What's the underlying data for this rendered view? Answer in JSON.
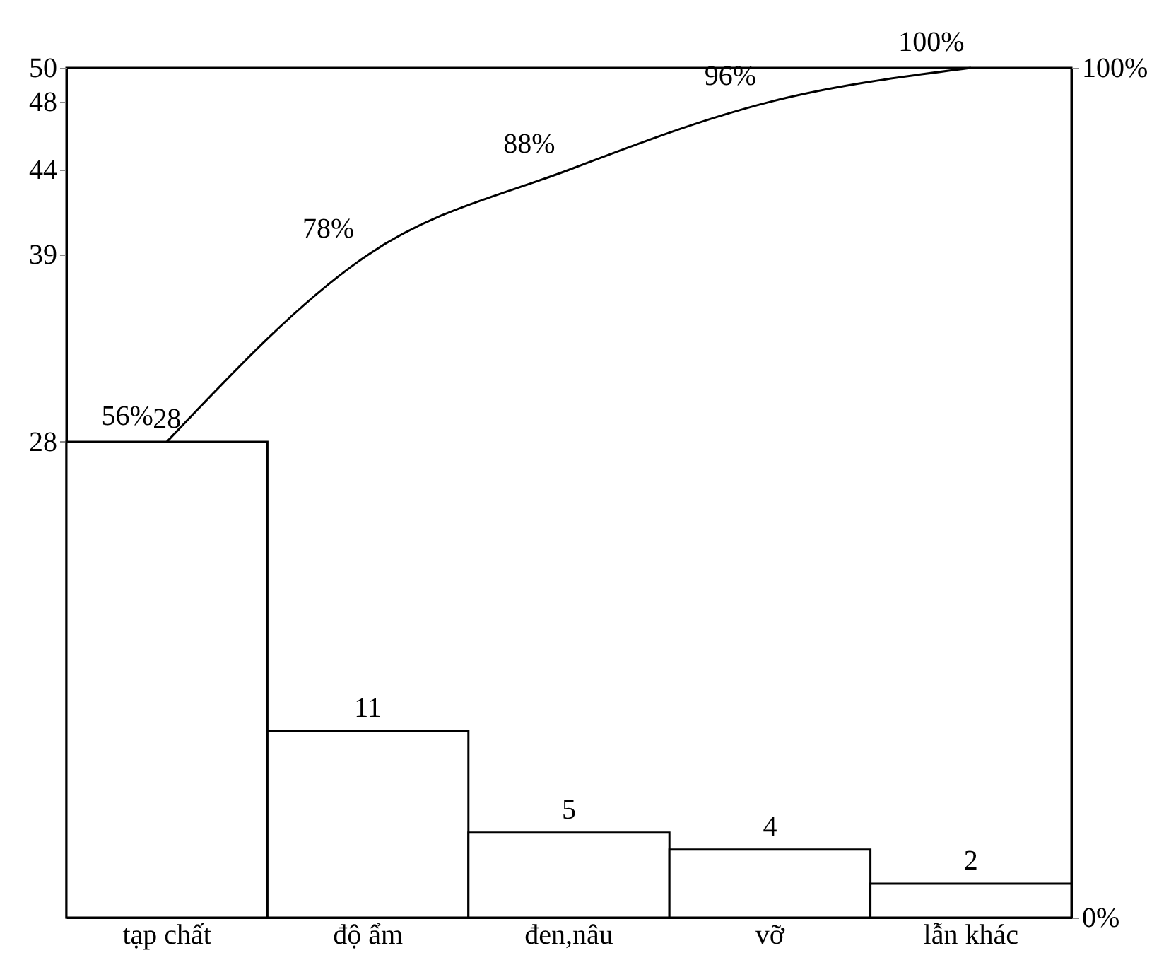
{
  "chart_data": {
    "type": "bar",
    "categories": [
      "tạp chất",
      "độ ẩm",
      "đen,nâu",
      "vỡ",
      "lẫn khác"
    ],
    "series": [
      {
        "color": "#ffffff",
        "values": [
          28,
          11,
          5,
          4,
          2
        ]
      },
      {
        "type": "line",
        "axis": "y2",
        "color": "#000000",
        "values": [
          56,
          78,
          88,
          96,
          100
        ],
        "value_labels": [
          "56%",
          "78%",
          "88%",
          "96%",
          "100%"
        ]
      }
    ],
    "data_labels": true,
    "ylim": [
      0,
      50
    ],
    "yticks": [
      28,
      39,
      44,
      48,
      50
    ],
    "y2lim": [
      0,
      100
    ],
    "y2ticks": [
      {
        "value": 0,
        "label": "0%"
      },
      {
        "value": 100,
        "label": "100%"
      }
    ],
    "grid": false
  }
}
